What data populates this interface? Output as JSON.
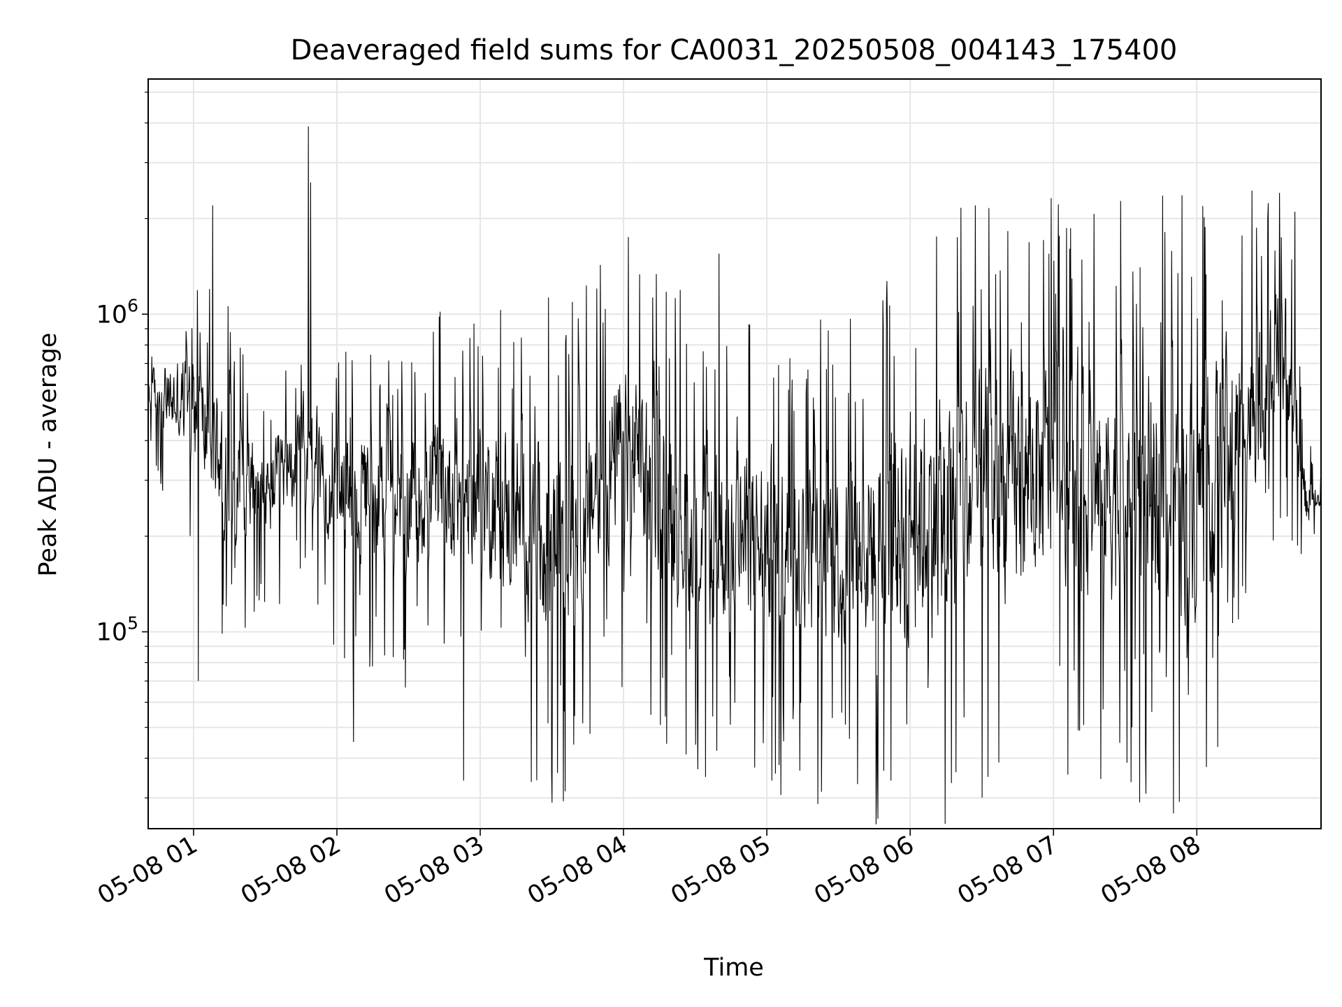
{
  "chart_data": {
    "type": "line",
    "title": "Deaveraged field sums for CA0031_20250508_004143_175400",
    "xlabel": "Time",
    "ylabel": "Peak ADU - average",
    "x_ticks": [
      "05-08 01",
      "05-08 02",
      "05-08 03",
      "05-08 04",
      "05-08 05",
      "05-08 06",
      "05-08 07",
      "05-08 08"
    ],
    "x_range": [
      "2025-05-08 00:41",
      "2025-05-08 08:52"
    ],
    "y_scale": "log",
    "y_range": [
      24000,
      5500000
    ],
    "y_tick_labels": [
      {
        "base": "10",
        "exp": "5",
        "value": 100000
      },
      {
        "base": "10",
        "exp": "6",
        "value": 1000000
      }
    ],
    "grid": true,
    "colors": {
      "line": "#000000",
      "grid": "#e6e6e6",
      "axes": "#000000"
    },
    "series_envelope": {
      "times": [
        "2025-05-08 00:41",
        "2025-05-08 01:00",
        "2025-05-08 01:15",
        "2025-05-08 01:30",
        "2025-05-08 01:48",
        "2025-05-08 02:00",
        "2025-05-08 02:30",
        "2025-05-08 03:00",
        "2025-05-08 03:30",
        "2025-05-08 04:00",
        "2025-05-08 04:30",
        "2025-05-08 05:00",
        "2025-05-08 05:30",
        "2025-05-08 06:00",
        "2025-05-08 06:30",
        "2025-05-08 07:00",
        "2025-05-08 07:30",
        "2025-05-08 08:00",
        "2025-05-08 08:38",
        "2025-05-08 08:45",
        "2025-05-08 08:52"
      ],
      "low": [
        450000,
        300000,
        170000,
        170000,
        250000,
        150000,
        140000,
        140000,
        70000,
        160000,
        85000,
        80000,
        70000,
        70000,
        85000,
        110000,
        90000,
        85000,
        400000,
        200000,
        220000
      ],
      "high": [
        700000,
        900000,
        600000,
        400000,
        650000,
        450000,
        550000,
        550000,
        500000,
        850000,
        500000,
        450000,
        450000,
        700000,
        850000,
        900000,
        900000,
        850000,
        1500000,
        350000,
        280000
      ]
    },
    "peaks": [
      {
        "time": "2025-05-08 01:48",
        "value": 3900000
      },
      {
        "time": "2025-05-08 01:49",
        "value": 2600000
      },
      {
        "time": "2025-05-08 01:08",
        "value": 2200000
      },
      {
        "time": "2025-05-08 08:41",
        "value": 2100000
      },
      {
        "time": "2025-05-08 04:02",
        "value": 1750000
      },
      {
        "time": "2025-05-08 04:40",
        "value": 1550000
      },
      {
        "time": "2025-05-08 06:58",
        "value": 1550000
      }
    ],
    "troughs": [
      {
        "time": "2025-05-08 03:30",
        "value": 29000
      },
      {
        "time": "2025-05-08 02:53",
        "value": 34000
      },
      {
        "time": "2025-05-08 05:02",
        "value": 34000
      },
      {
        "time": "2025-05-08 05:52",
        "value": 34000
      },
      {
        "time": "2025-05-08 02:07",
        "value": 45000
      },
      {
        "time": "2025-05-08 01:02",
        "value": 70000
      }
    ]
  }
}
